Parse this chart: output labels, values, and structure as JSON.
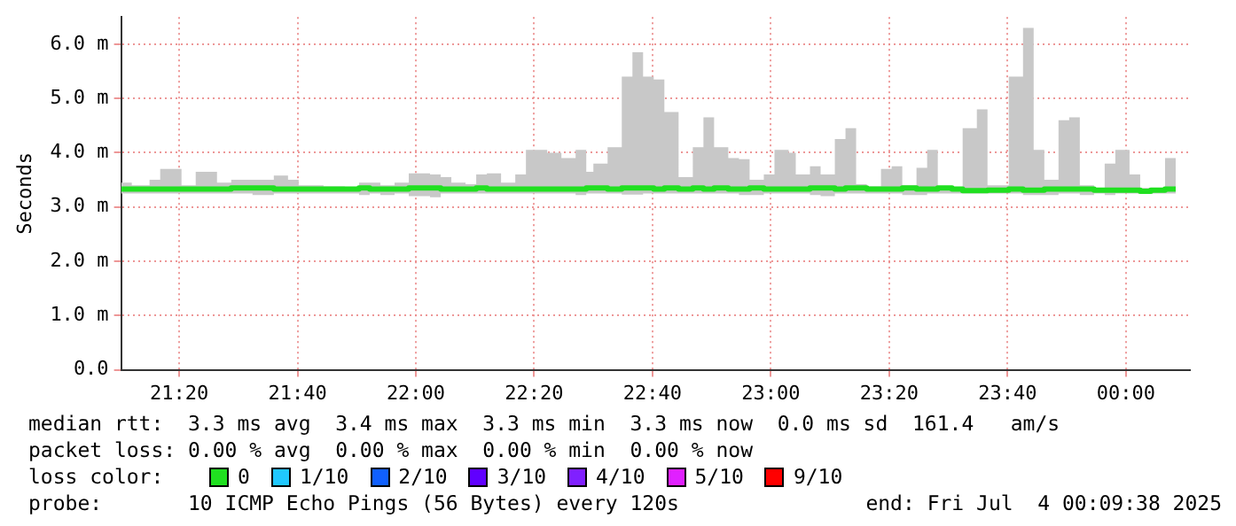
{
  "chart_data": {
    "type": "step",
    "ylabel": "Seconds",
    "x": [
      21.17,
      21.2,
      21.25,
      21.28,
      21.34,
      21.38,
      21.44,
      21.48,
      21.54,
      21.6,
      21.64,
      21.67,
      21.74,
      21.8,
      21.84,
      21.87,
      21.9,
      21.94,
      21.98,
      22.04,
      22.07,
      22.1,
      22.14,
      22.17,
      22.2,
      22.24,
      22.28,
      22.31,
      22.37,
      22.41,
      22.45,
      22.48,
      22.5,
      22.54,
      22.58,
      22.61,
      22.64,
      22.67,
      22.7,
      22.74,
      22.78,
      22.81,
      22.84,
      22.88,
      22.91,
      22.94,
      22.98,
      23.01,
      23.05,
      23.07,
      23.11,
      23.14,
      23.18,
      23.21,
      23.24,
      23.27,
      23.31,
      23.34,
      23.37,
      23.41,
      23.44,
      23.47,
      23.51,
      23.54,
      23.58,
      23.61,
      23.64,
      23.67,
      23.71,
      23.74,
      23.77,
      23.81,
      23.84,
      23.87,
      23.91,
      23.94,
      23.97,
      24.01,
      24.04,
      24.07,
      24.11,
      24.14
    ],
    "series": [
      {
        "color": "#20e020",
        "values": [
          3.33,
          3.33,
          3.33,
          3.33,
          3.33,
          3.33,
          3.33,
          3.35,
          3.35,
          3.33,
          3.33,
          3.33,
          3.33,
          3.33,
          3.35,
          3.33,
          3.33,
          3.33,
          3.35,
          3.35,
          3.33,
          3.33,
          3.33,
          3.35,
          3.33,
          3.33,
          3.33,
          3.33,
          3.33,
          3.33,
          3.33,
          3.35,
          3.35,
          3.33,
          3.35,
          3.35,
          3.35,
          3.33,
          3.35,
          3.33,
          3.35,
          3.33,
          3.35,
          3.33,
          3.33,
          3.35,
          3.33,
          3.33,
          3.33,
          3.33,
          3.35,
          3.35,
          3.33,
          3.35,
          3.35,
          3.33,
          3.33,
          3.33,
          3.35,
          3.33,
          3.33,
          3.35,
          3.33,
          3.3,
          3.3,
          3.31,
          3.31,
          3.33,
          3.31,
          3.31,
          3.33,
          3.33,
          3.33,
          3.33,
          3.31,
          3.31,
          3.31,
          3.31,
          3.29,
          3.31,
          3.33,
          3.33
        ],
        "lower": [
          3.25,
          3.25,
          3.25,
          3.25,
          3.25,
          3.25,
          3.25,
          3.25,
          3.22,
          3.25,
          3.25,
          3.25,
          3.25,
          3.25,
          3.22,
          3.25,
          3.22,
          3.25,
          3.2,
          3.18,
          3.25,
          3.25,
          3.25,
          3.25,
          3.25,
          3.25,
          3.25,
          3.25,
          3.25,
          3.25,
          3.22,
          3.25,
          3.25,
          3.25,
          3.23,
          3.23,
          3.25,
          3.25,
          3.25,
          3.25,
          3.25,
          3.25,
          3.25,
          3.25,
          3.22,
          3.22,
          3.25,
          3.25,
          3.25,
          3.25,
          3.22,
          3.2,
          3.25,
          3.25,
          3.25,
          3.25,
          3.25,
          3.25,
          3.22,
          3.22,
          3.25,
          3.25,
          3.25,
          3.25,
          3.25,
          3.25,
          3.25,
          3.25,
          3.22,
          3.22,
          3.22,
          3.25,
          3.25,
          3.22,
          3.25,
          3.22,
          3.25,
          3.25,
          3.25,
          3.25,
          3.25,
          3.25
        ],
        "upper": [
          3.45,
          3.4,
          3.5,
          3.7,
          3.4,
          3.65,
          3.45,
          3.5,
          3.5,
          3.58,
          3.5,
          3.4,
          3.38,
          3.35,
          3.45,
          3.45,
          3.4,
          3.45,
          3.62,
          3.6,
          3.55,
          3.45,
          3.42,
          3.6,
          3.62,
          3.45,
          3.6,
          4.05,
          4.0,
          3.9,
          4.05,
          3.65,
          3.8,
          4.1,
          5.4,
          5.85,
          5.4,
          5.35,
          4.75,
          3.55,
          4.1,
          4.65,
          4.1,
          3.9,
          3.88,
          3.5,
          3.6,
          4.05,
          4.0,
          3.6,
          3.75,
          3.6,
          4.25,
          4.45,
          3.42,
          3.38,
          3.7,
          3.75,
          3.4,
          3.72,
          4.05,
          3.38,
          3.35,
          4.45,
          4.8,
          3.4,
          3.4,
          5.4,
          6.3,
          4.05,
          3.5,
          4.6,
          4.65,
          3.4,
          3.35,
          3.8,
          4.05,
          3.6,
          3.35,
          3.35,
          3.9,
          3.9
        ]
      }
    ],
    "xlim": [
      21.17,
      24.18
    ],
    "xticks": [
      {
        "value": 21.3333,
        "label": "21:20"
      },
      {
        "value": 21.6667,
        "label": "21:40"
      },
      {
        "value": 22,
        "label": "22:00"
      },
      {
        "value": 22.3333,
        "label": "22:20"
      },
      {
        "value": 22.6667,
        "label": "22:40"
      },
      {
        "value": 23,
        "label": "23:00"
      },
      {
        "value": 23.3333,
        "label": "23:20"
      },
      {
        "value": 23.6667,
        "label": "23:40"
      },
      {
        "value": 24,
        "label": "00:00"
      }
    ],
    "ylim": [
      0,
      6.5
    ],
    "yticks": [
      {
        "value": 0,
        "label": "0.0"
      },
      {
        "value": 1,
        "label": "1.0 m"
      },
      {
        "value": 2,
        "label": "2.0 m"
      },
      {
        "value": 3,
        "label": "3.0 m"
      },
      {
        "value": 4,
        "label": "4.0 m"
      },
      {
        "value": 5,
        "label": "5.0 m"
      },
      {
        "value": 6,
        "label": "6.0 m"
      }
    ],
    "grid": true,
    "annotations": [
      "median rtt:  3.3 ms avg  3.4 ms max  3.3 ms min  3.3 ms now  0.0 ms sd  161.4   am/s",
      "packet loss: 0.00 % avg  0.00 % max  0.00 % min  0.00 % now",
      "loss color:",
      "0",
      "1/10",
      "2/10",
      "3/10",
      "4/10",
      "5/10",
      "9/10",
      "probe:       10 ICMP Echo Pings (56 Bytes) every 120s",
      "end: Fri Jul  4 00:09:38 2025"
    ]
  }
}
